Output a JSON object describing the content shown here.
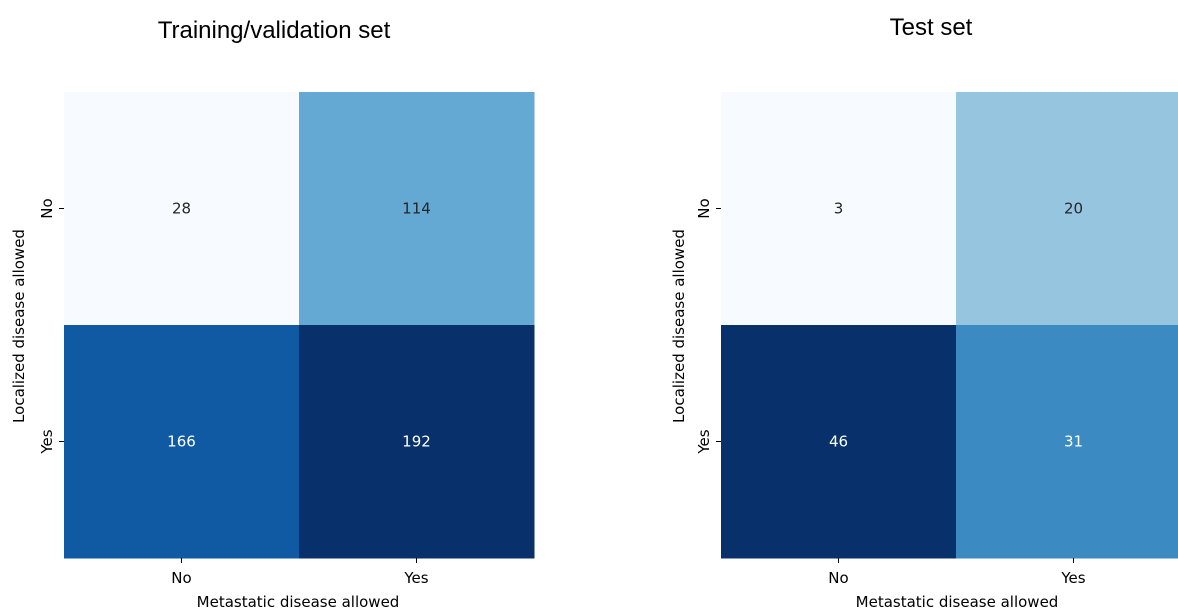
{
  "chart_data": [
    {
      "type": "heatmap",
      "title": "Training/validation set",
      "xlabel": "Metastatic disease allowed",
      "ylabel": "Localized disease allowed",
      "x_categories": [
        "No",
        "Yes"
      ],
      "y_categories": [
        "No",
        "Yes"
      ],
      "values": [
        [
          28,
          114
        ],
        [
          166,
          192
        ]
      ],
      "colormap": "Blues",
      "colorbar": false
    },
    {
      "type": "heatmap",
      "title": "Test set",
      "xlabel": "Metastatic disease allowed",
      "ylabel": "Localized disease allowed",
      "x_categories": [
        "No",
        "Yes"
      ],
      "y_categories": [
        "No",
        "Yes"
      ],
      "values": [
        [
          3,
          20
        ],
        [
          46,
          31
        ]
      ],
      "colormap": "Blues",
      "colorbar": false
    }
  ]
}
